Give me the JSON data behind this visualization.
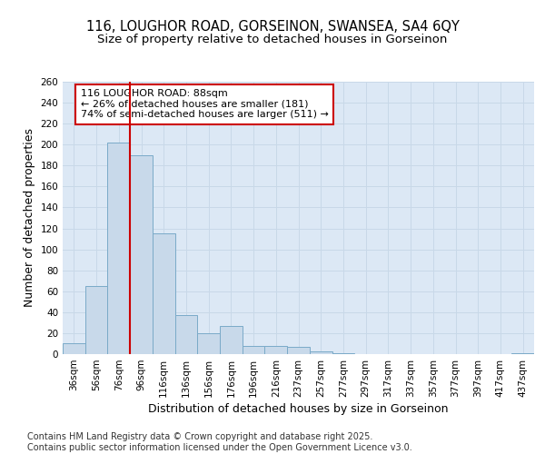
{
  "title_line1": "116, LOUGHOR ROAD, GORSEINON, SWANSEA, SA4 6QY",
  "title_line2": "Size of property relative to detached houses in Gorseinon",
  "xlabel": "Distribution of detached houses by size in Gorseinon",
  "ylabel": "Number of detached properties",
  "categories": [
    "36sqm",
    "56sqm",
    "76sqm",
    "96sqm",
    "116sqm",
    "136sqm",
    "156sqm",
    "176sqm",
    "196sqm",
    "216sqm",
    "237sqm",
    "257sqm",
    "277sqm",
    "297sqm",
    "317sqm",
    "337sqm",
    "357sqm",
    "377sqm",
    "397sqm",
    "417sqm",
    "437sqm"
  ],
  "values": [
    10,
    65,
    202,
    190,
    115,
    37,
    20,
    27,
    8,
    8,
    7,
    3,
    1,
    0,
    0,
    0,
    0,
    0,
    0,
    0,
    1
  ],
  "bar_color": "#c8d9ea",
  "bar_edge_color": "#7aaac8",
  "vline_color": "#cc0000",
  "vline_pos": 2.5,
  "annotation_text": "116 LOUGHOR ROAD: 88sqm\n← 26% of detached houses are smaller (181)\n74% of semi-detached houses are larger (511) →",
  "annotation_box_color": "#ffffff",
  "annotation_box_edge_color": "#cc0000",
  "ylim": [
    0,
    260
  ],
  "yticks": [
    0,
    20,
    40,
    60,
    80,
    100,
    120,
    140,
    160,
    180,
    200,
    220,
    240,
    260
  ],
  "grid_color": "#c8d8e8",
  "bg_color": "#dce8f5",
  "footer_text": "Contains HM Land Registry data © Crown copyright and database right 2025.\nContains public sector information licensed under the Open Government Licence v3.0.",
  "title_fontsize": 10.5,
  "subtitle_fontsize": 9.5,
  "axis_label_fontsize": 9,
  "tick_fontsize": 7.5,
  "annotation_fontsize": 8,
  "footer_fontsize": 7
}
